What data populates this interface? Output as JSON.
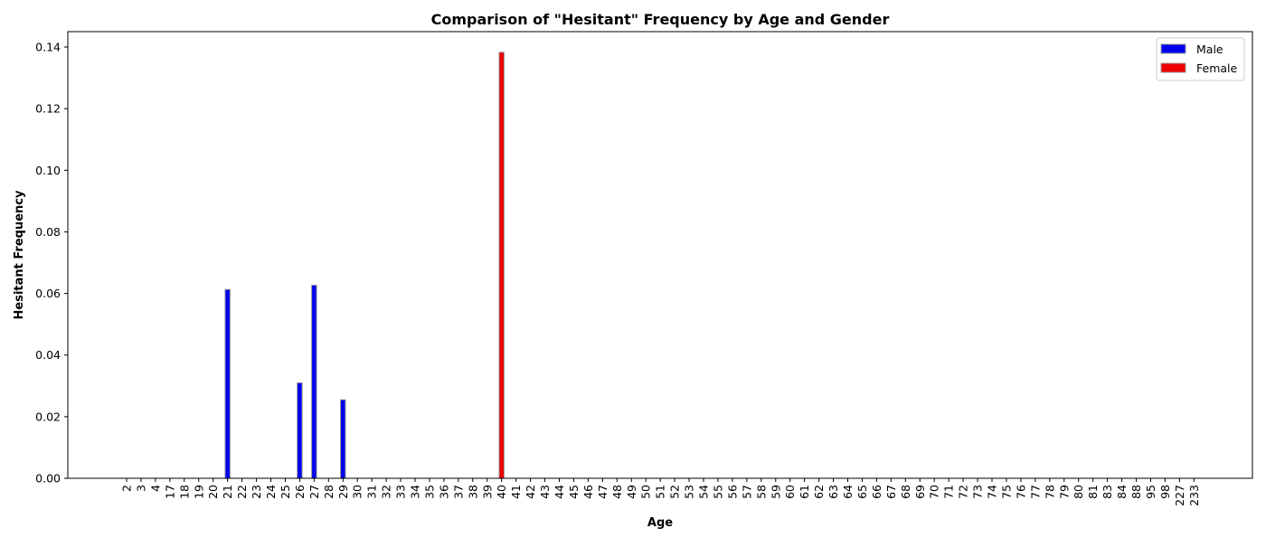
{
  "chart_data": {
    "type": "bar",
    "title": "Comparison of \"Hesitant\" Frequency by Age and Gender",
    "xlabel": "Age",
    "ylabel": "Hesitant Frequency",
    "categories": [
      "2",
      "3",
      "4",
      "17",
      "18",
      "19",
      "20",
      "21",
      "22",
      "23",
      "24",
      "25",
      "26",
      "27",
      "28",
      "29",
      "30",
      "31",
      "32",
      "33",
      "34",
      "35",
      "36",
      "37",
      "38",
      "39",
      "40",
      "41",
      "42",
      "43",
      "44",
      "45",
      "46",
      "47",
      "48",
      "49",
      "50",
      "51",
      "52",
      "53",
      "54",
      "55",
      "56",
      "57",
      "58",
      "59",
      "60",
      "61",
      "62",
      "63",
      "64",
      "65",
      "66",
      "67",
      "68",
      "69",
      "70",
      "71",
      "72",
      "73",
      "74",
      "75",
      "76",
      "77",
      "78",
      "79",
      "80",
      "81",
      "83",
      "84",
      "88",
      "95",
      "98",
      "227",
      "233"
    ],
    "series": [
      {
        "name": "Male",
        "color": "#0000ee",
        "values": {
          "21": 0.0613,
          "26": 0.031,
          "27": 0.0627,
          "29": 0.0255
        }
      },
      {
        "name": "Female",
        "color": "#ee0000",
        "values": {
          "40": 0.1383
        }
      }
    ],
    "ylim": [
      0,
      0.145
    ],
    "yticks": [
      "0.00",
      "0.02",
      "0.04",
      "0.06",
      "0.08",
      "0.10",
      "0.12",
      "0.14"
    ],
    "grid": false,
    "legend_position": "top-right"
  }
}
